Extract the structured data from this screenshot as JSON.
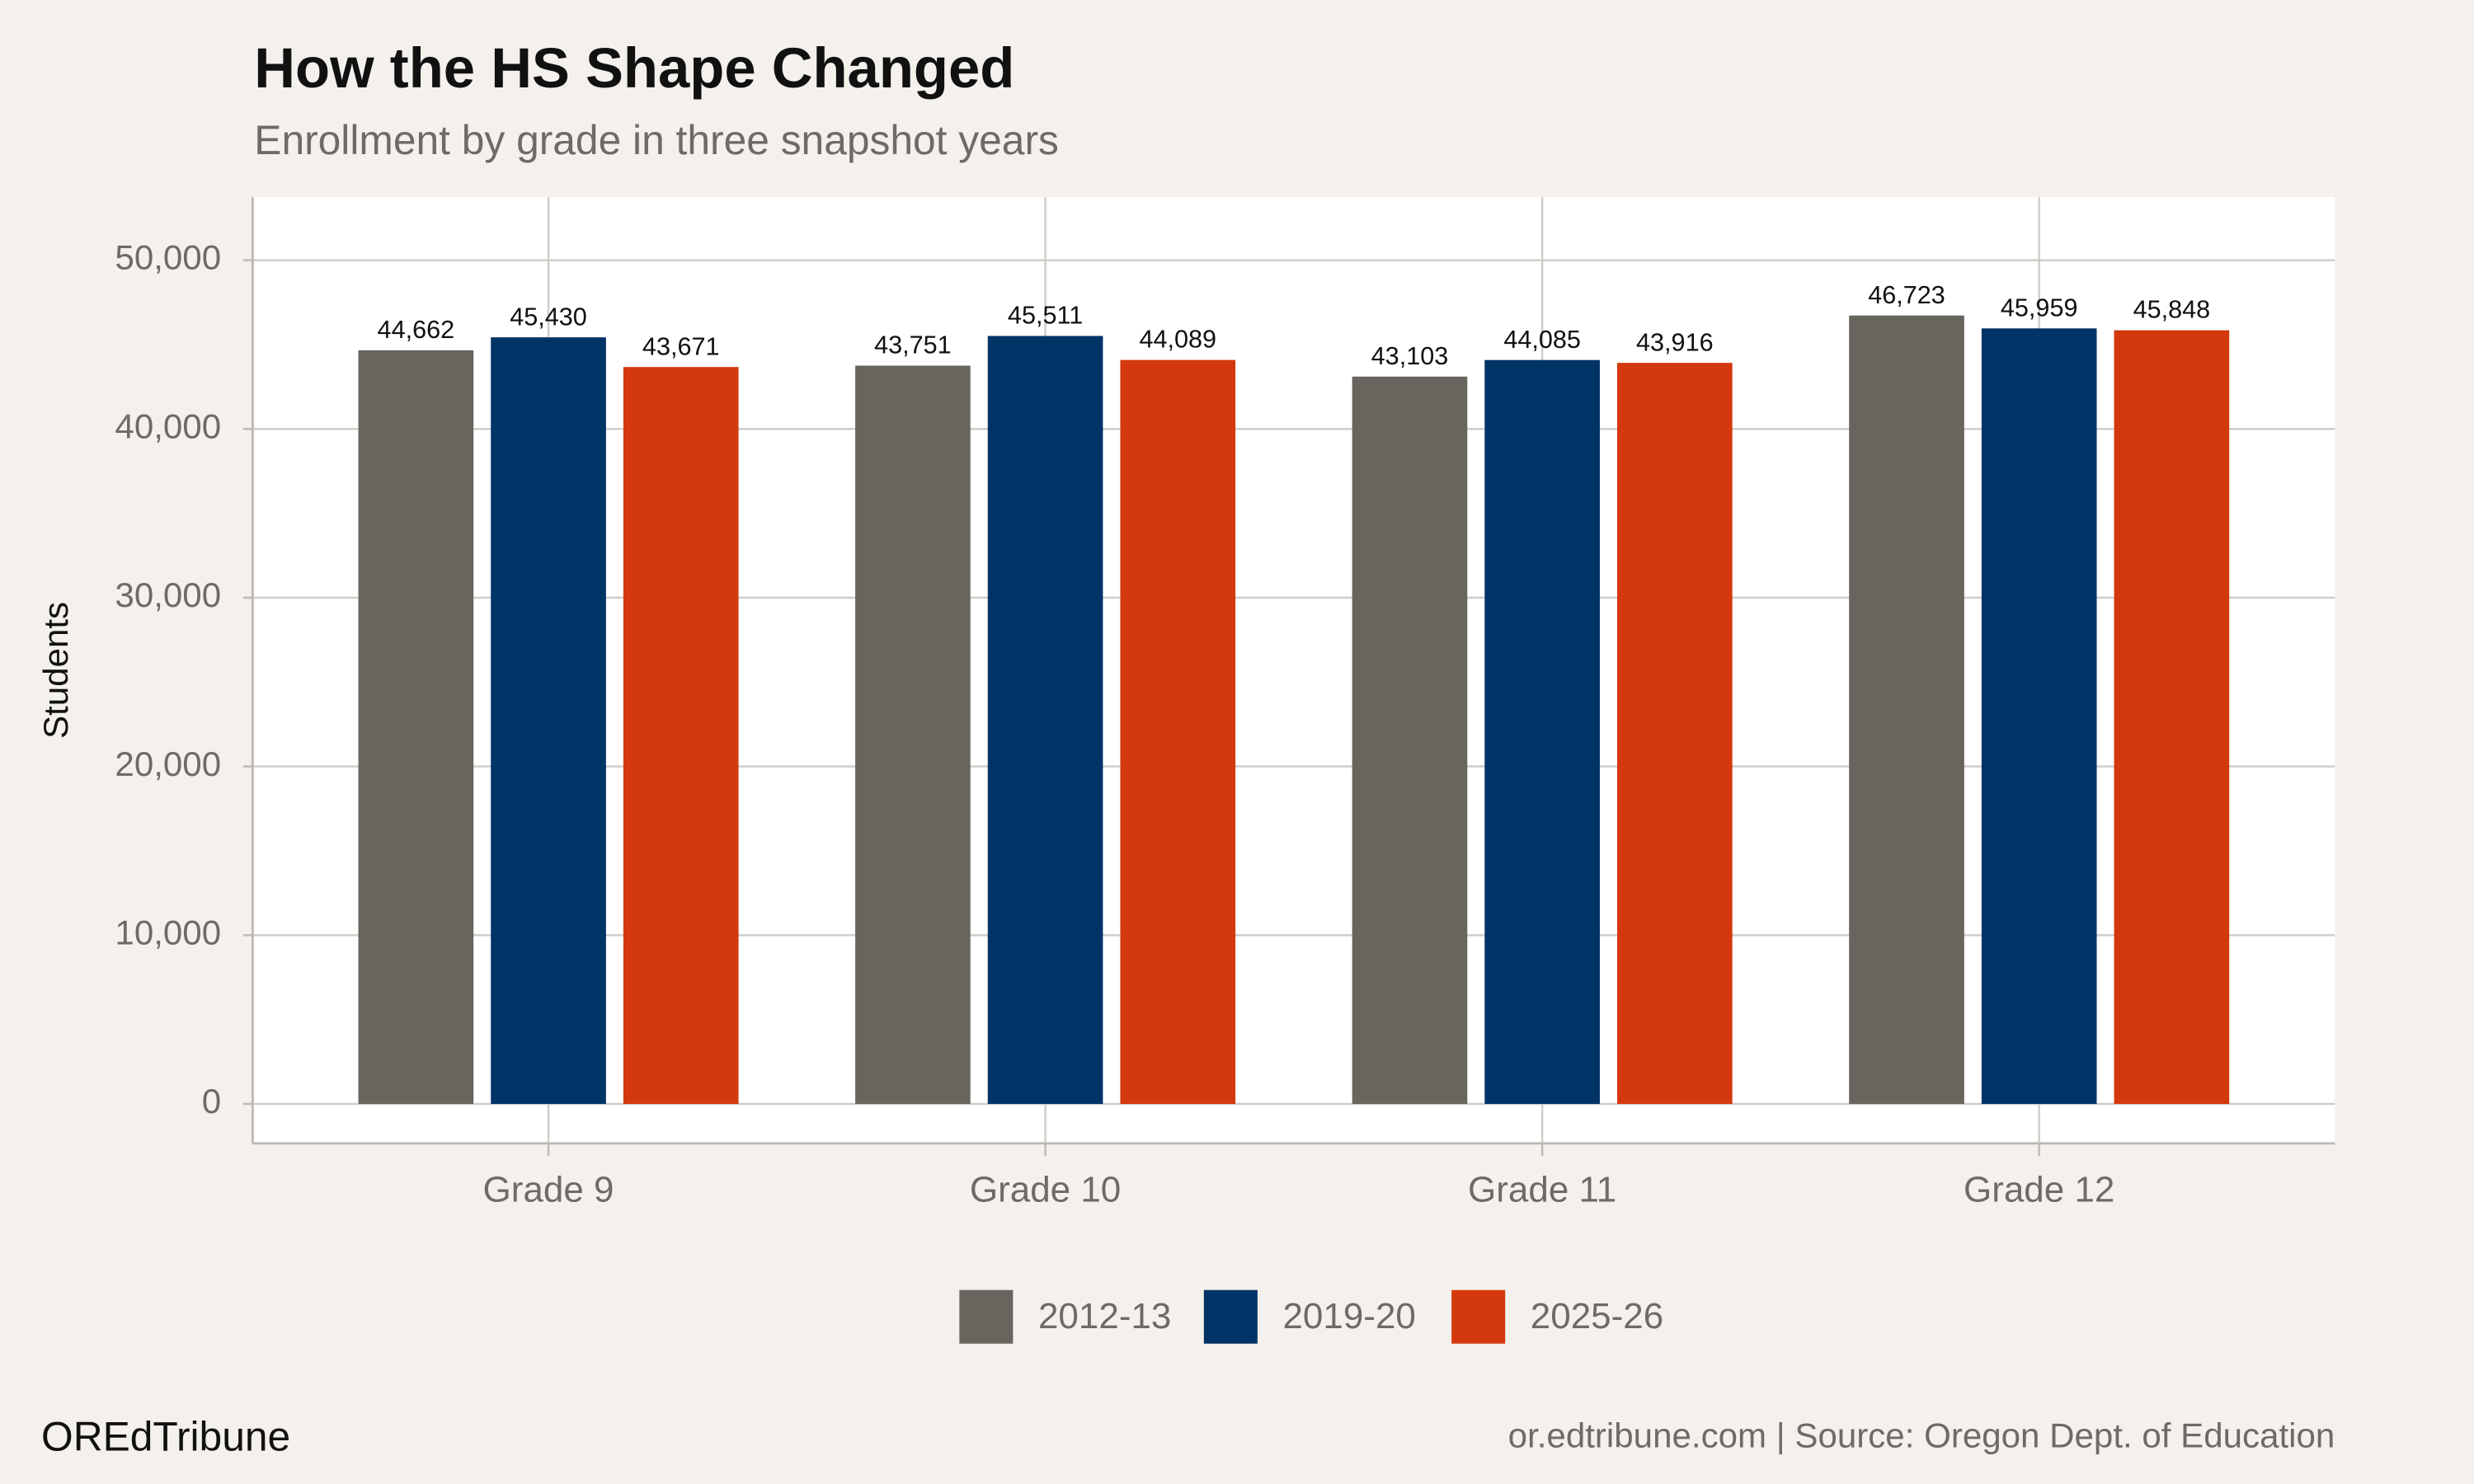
{
  "chart_data": {
    "type": "bar",
    "title": "How the HS Shape Changed",
    "subtitle": "Enrollment by grade in three snapshot years",
    "y_label": "Students",
    "categories": [
      "Grade 9",
      "Grade 10",
      "Grade 11",
      "Grade 12"
    ],
    "series": [
      {
        "name": "2012-13",
        "color": "#68645e",
        "values": [
          44662,
          43751,
          43103,
          46723
        ],
        "value_labels": [
          "44,662",
          "43,751",
          "43,103",
          "46,723"
        ]
      },
      {
        "name": "2019-20",
        "color": "#003366",
        "values": [
          45430,
          45511,
          44085,
          45959
        ],
        "value_labels": [
          "45,430",
          "45,511",
          "44,085",
          "45,959"
        ]
      },
      {
        "name": "2025-26",
        "color": "#d4380d",
        "values": [
          43671,
          44089,
          43916,
          45848
        ],
        "value_labels": [
          "43,671",
          "44,089",
          "43,916",
          "45,848"
        ]
      }
    ],
    "ylim": [
      -2336,
      53738
    ],
    "yticks": [
      0,
      {
        "value": 10000,
        "label": "10,000"
      },
      {
        "value": 20000,
        "label": "20,000"
      },
      {
        "value": 30000,
        "label": "30,000"
      },
      {
        "value": 40000,
        "label": "40,000"
      },
      {
        "value": 50000,
        "label": "50,000"
      }
    ],
    "grid": true,
    "legend": "bottom",
    "brand": "OREdTribune",
    "caption": "or.edtribune.com | Source: Oregon Dept. of Education"
  }
}
